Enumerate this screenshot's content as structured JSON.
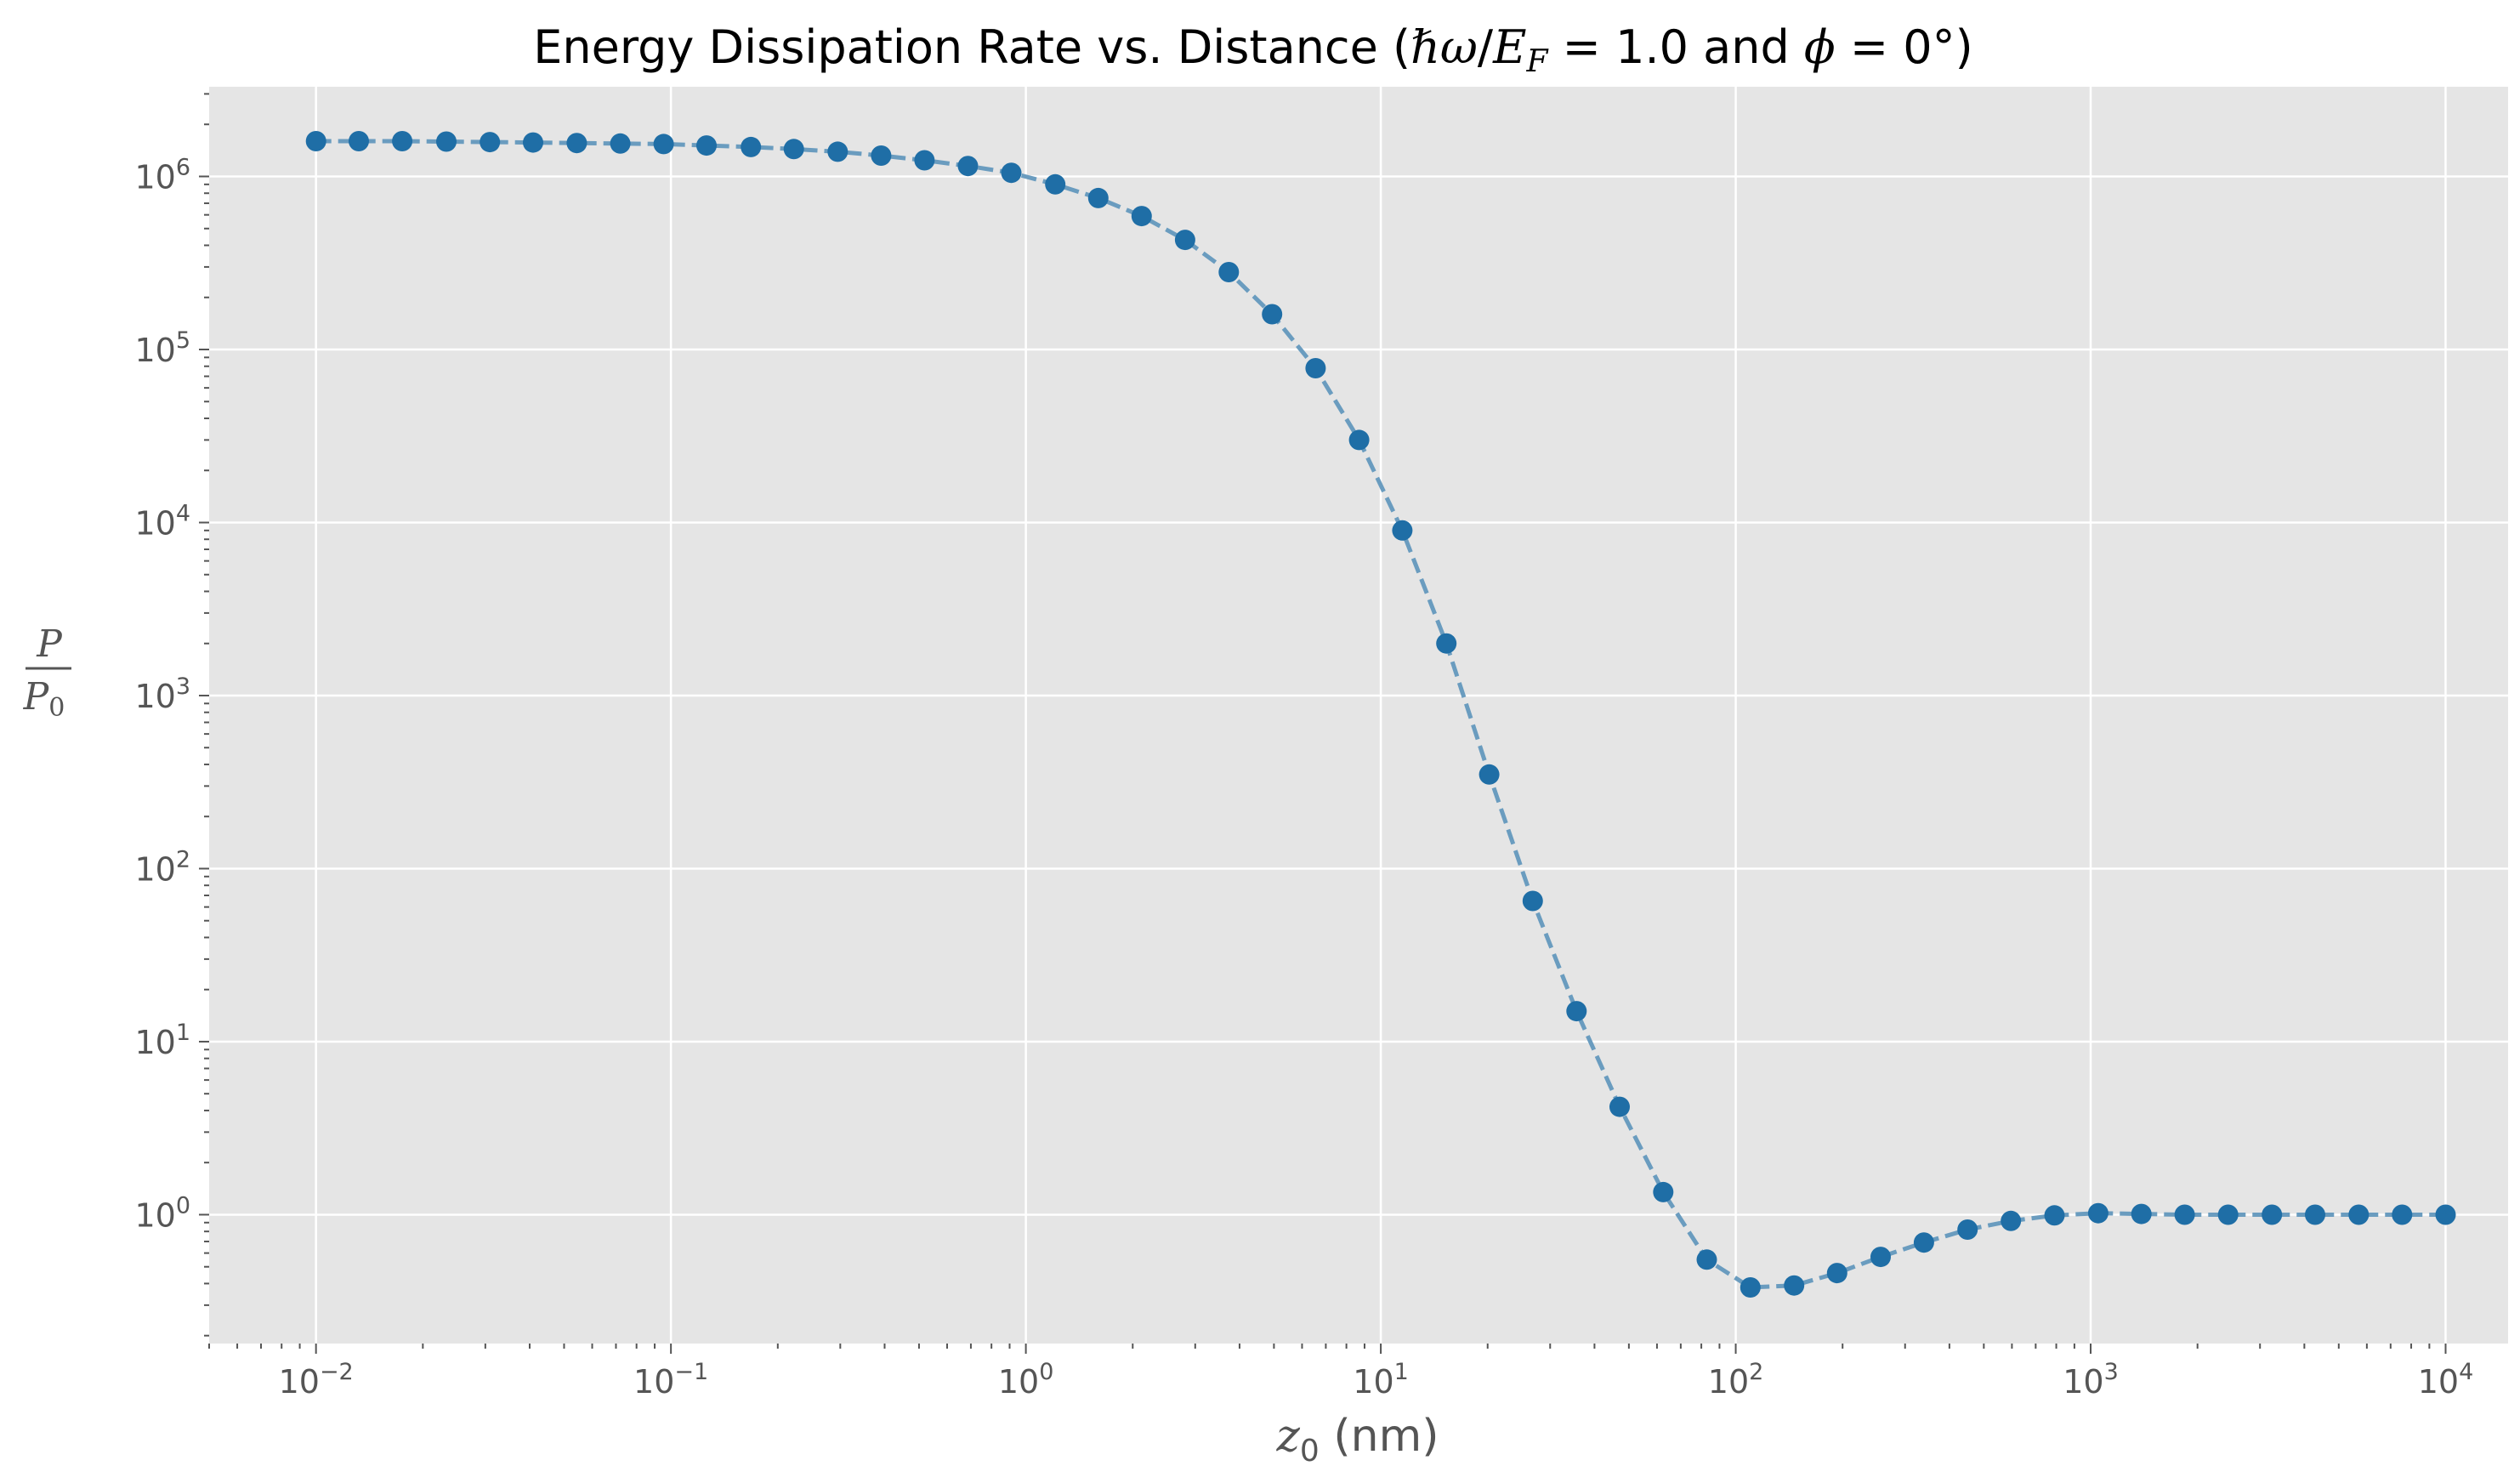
{
  "chart_data": {
    "type": "line",
    "title": {
      "prefix": "Energy Dissipation Rate vs. Distance (",
      "hbar": "ℏ",
      "omega": "ω",
      "slash": "/",
      "E": "E",
      "F": "F",
      "eq1": " = 1.0 and ",
      "phi": "ϕ",
      "eq2": " = 0°)"
    },
    "xlabel": {
      "var": "z",
      "sub": "0",
      "rest": " (nm)"
    },
    "ylabel": {
      "num": "P",
      "den": "P",
      "den_sub": "0"
    },
    "xscale": "log",
    "yscale": "log",
    "xlim": [
      0.005,
      15000
    ],
    "ylim": [
      0.18,
      3300000
    ],
    "x_tick_labels": [
      {
        "value": 0.01,
        "base": "10",
        "exp": "−2"
      },
      {
        "value": 0.1,
        "base": "10",
        "exp": "−1"
      },
      {
        "value": 1,
        "base": "10",
        "exp": "0"
      },
      {
        "value": 10,
        "base": "10",
        "exp": "1"
      },
      {
        "value": 100,
        "base": "10",
        "exp": "2"
      },
      {
        "value": 1000,
        "base": "10",
        "exp": "3"
      },
      {
        "value": 10000,
        "base": "10",
        "exp": "4"
      }
    ],
    "y_tick_labels": [
      {
        "value": 1,
        "base": "10",
        "exp": "0"
      },
      {
        "value": 10,
        "base": "10",
        "exp": "1"
      },
      {
        "value": 100,
        "base": "10",
        "exp": "2"
      },
      {
        "value": 1000,
        "base": "10",
        "exp": "3"
      },
      {
        "value": 10000,
        "base": "10",
        "exp": "4"
      },
      {
        "value": 100000,
        "base": "10",
        "exp": "5"
      },
      {
        "value": 1000000,
        "base": "10",
        "exp": "6"
      }
    ],
    "grid": true,
    "style": "dashed line with circle markers",
    "colors": {
      "background": "#e5e5e5",
      "grid": "#ffffff",
      "marker": "#1f6ea6",
      "line": "#6a9cbf",
      "text": "#555555"
    },
    "series": [
      {
        "x": [
          0.01,
          0.0132,
          0.0175,
          0.0233,
          0.0309,
          0.0409,
          0.0543,
          0.072,
          0.0954,
          0.126,
          0.168,
          0.222,
          0.295,
          0.391,
          0.518,
          0.687,
          0.91,
          1.21,
          1.6,
          2.12,
          2.81,
          3.73,
          4.94,
          6.55,
          8.69,
          11.5,
          15.3,
          20.2,
          26.8,
          35.6,
          47.1,
          62.5,
          82.9,
          110,
          146,
          193,
          256,
          339,
          450,
          596,
          791,
          1050,
          1390,
          1840,
          2440,
          3240,
          4290,
          5690,
          7540,
          10000
        ],
        "y": [
          1600000,
          1600000,
          1600000,
          1590000,
          1580000,
          1570000,
          1560000,
          1550000,
          1540000,
          1510000,
          1480000,
          1440000,
          1390000,
          1320000,
          1240000,
          1150000,
          1050000,
          900000,
          750000,
          590000,
          430000,
          280000,
          160000,
          78000,
          30000,
          9000,
          2000,
          350,
          65,
          15,
          4.2,
          1.35,
          0.55,
          0.38,
          0.39,
          0.46,
          0.57,
          0.69,
          0.82,
          0.92,
          0.99,
          1.02,
          1.01,
          1.0,
          1.0,
          1.0,
          1.0,
          1.0,
          1.0,
          1.0
        ]
      }
    ]
  }
}
